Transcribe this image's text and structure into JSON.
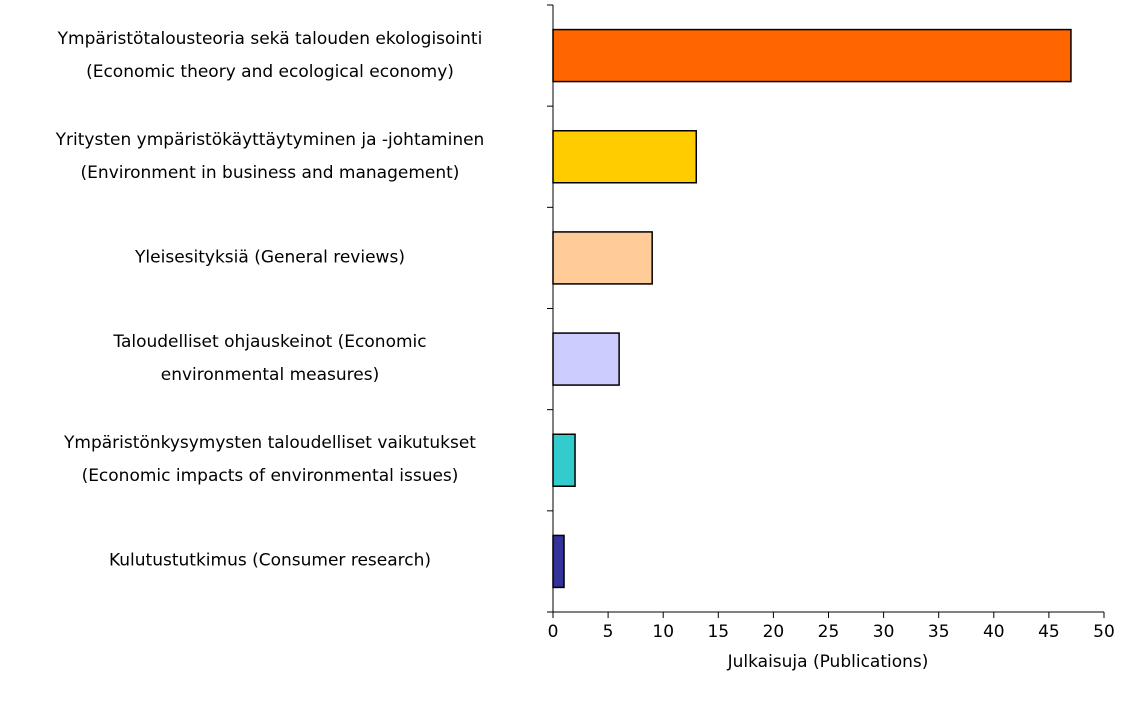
{
  "chart_data": {
    "type": "barh",
    "categories": [
      "Ympäristötalousteoria sekä talouden ekologisointi\n(Economic theory and ecological economy)",
      "Yritysten ympäristökäyttäytyminen ja -johtaminen\n(Environment in business and management)",
      "Yleisesityksiä (General reviews)",
      "Taloudelliset ohjauskeinot (Economic\nenvironmental measures)",
      "Ympäristönkysymysten taloudelliset vaikutukset\n(Economic impacts of environmental issues)",
      "Kulutustutkimus (Consumer research)"
    ],
    "values": [
      47,
      13,
      9,
      6,
      2,
      1
    ],
    "colors": [
      "#ff6600",
      "#ffcc00",
      "#ffcc99",
      "#ccccff",
      "#33cccc",
      "#333399"
    ],
    "xlabel": "Julkaisuja (Publications)",
    "xlim": [
      0,
      50
    ],
    "xticks": [
      0,
      5,
      10,
      15,
      20,
      25,
      30,
      35,
      40,
      45,
      50
    ]
  }
}
